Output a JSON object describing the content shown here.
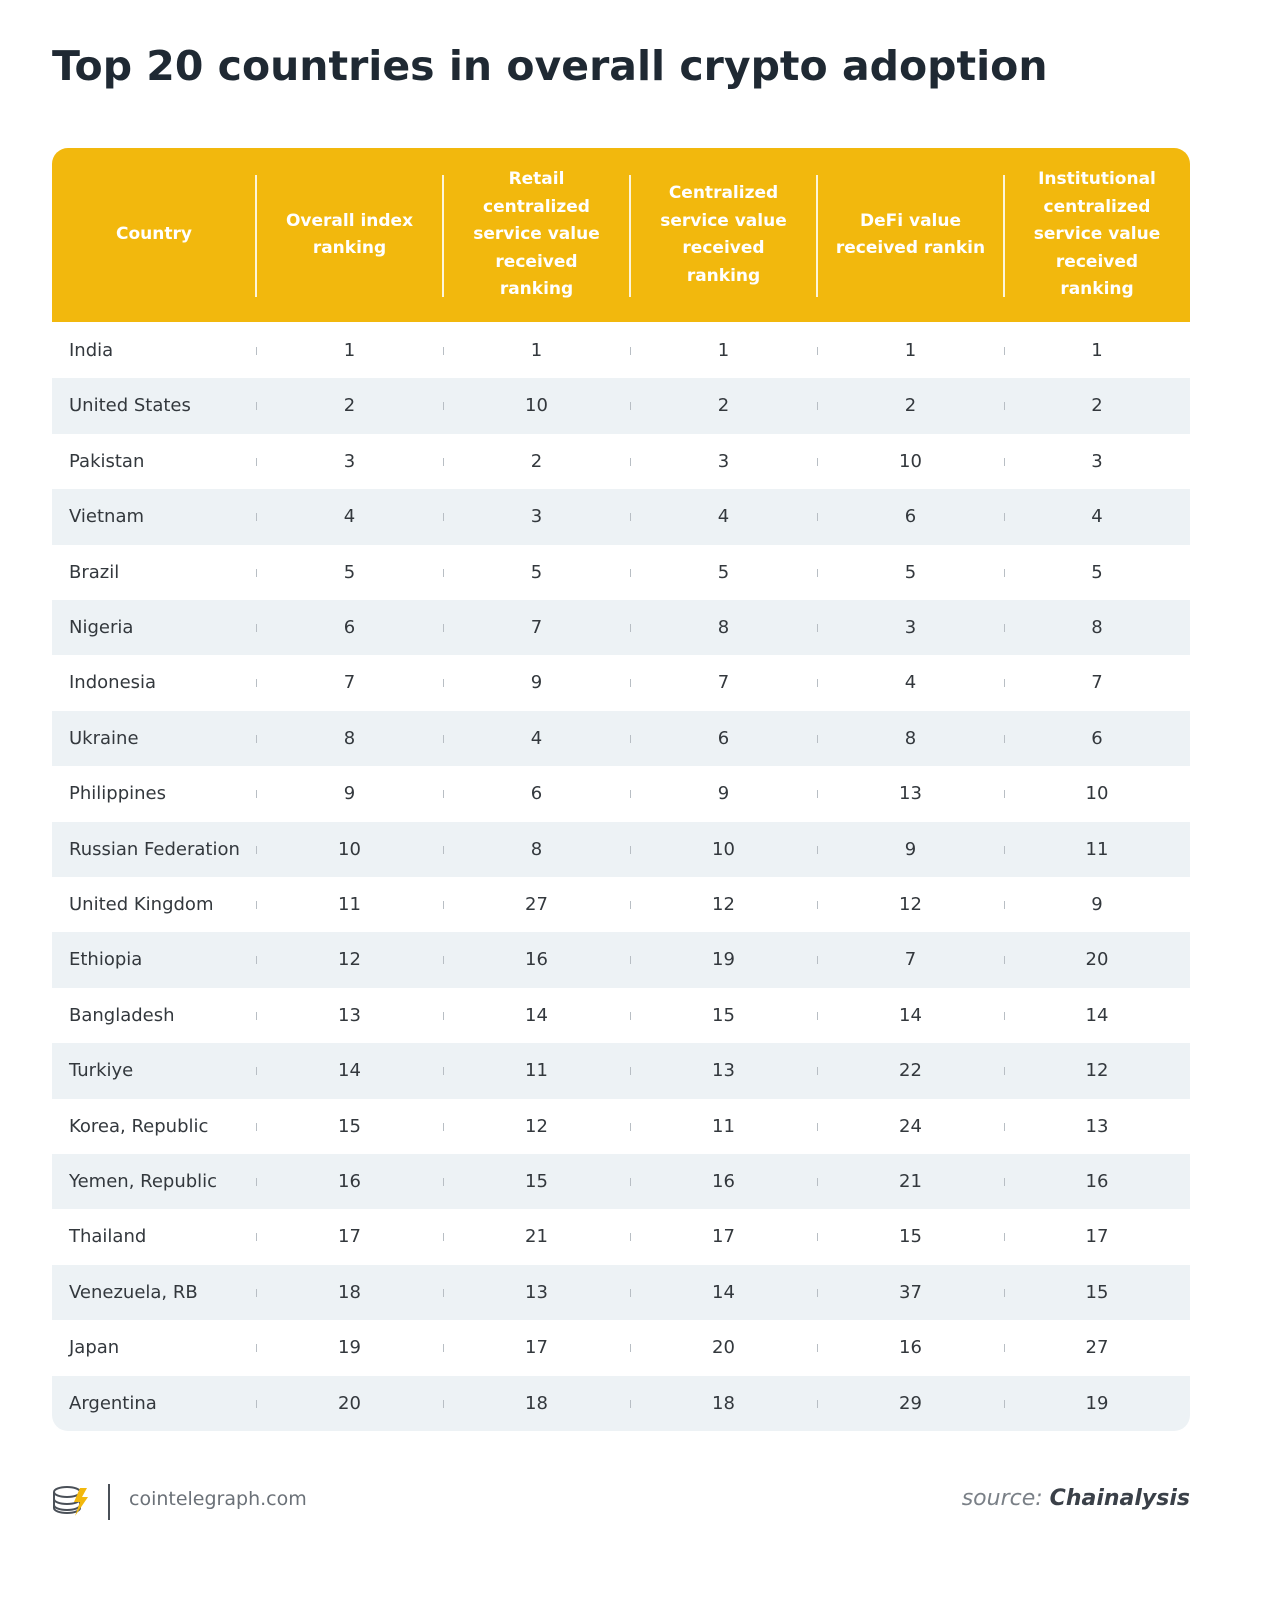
{
  "title": "Top 20 countries in overall crypto adoption",
  "table": {
    "header": [
      "Country",
      "Overall index ranking",
      "Retail centralized service value received ranking",
      "Centralized service value received ranking",
      "DeFi value received rankin",
      "Institutional centralized service value received ranking"
    ],
    "rows": [
      [
        "India",
        1,
        1,
        1,
        1,
        1
      ],
      [
        "United States",
        2,
        10,
        2,
        2,
        2
      ],
      [
        "Pakistan",
        3,
        2,
        3,
        10,
        3
      ],
      [
        "Vietnam",
        4,
        3,
        4,
        6,
        4
      ],
      [
        "Brazil",
        5,
        5,
        5,
        5,
        5
      ],
      [
        "Nigeria",
        6,
        7,
        8,
        3,
        8
      ],
      [
        "Indonesia",
        7,
        9,
        7,
        4,
        7
      ],
      [
        "Ukraine",
        8,
        4,
        6,
        8,
        6
      ],
      [
        "Philippines",
        9,
        6,
        9,
        13,
        10
      ],
      [
        "Russian Federation",
        10,
        8,
        10,
        9,
        11
      ],
      [
        "United Kingdom",
        11,
        27,
        12,
        12,
        9
      ],
      [
        "Ethiopia",
        12,
        16,
        19,
        7,
        20
      ],
      [
        "Bangladesh",
        13,
        14,
        15,
        14,
        14
      ],
      [
        "Turkiye",
        14,
        11,
        13,
        22,
        12
      ],
      [
        "Korea, Republic",
        15,
        12,
        11,
        24,
        13
      ],
      [
        "Yemen, Republic",
        16,
        15,
        16,
        21,
        16
      ],
      [
        "Thailand",
        17,
        21,
        17,
        15,
        17
      ],
      [
        "Venezuela, RB",
        18,
        13,
        14,
        37,
        15
      ],
      [
        "Japan",
        19,
        17,
        20,
        16,
        27
      ],
      [
        "Argentina",
        20,
        18,
        18,
        29,
        19
      ]
    ]
  },
  "footer": {
    "site": "cointelegraph.com",
    "source_label": "source:",
    "source": "Chainalysis"
  }
}
